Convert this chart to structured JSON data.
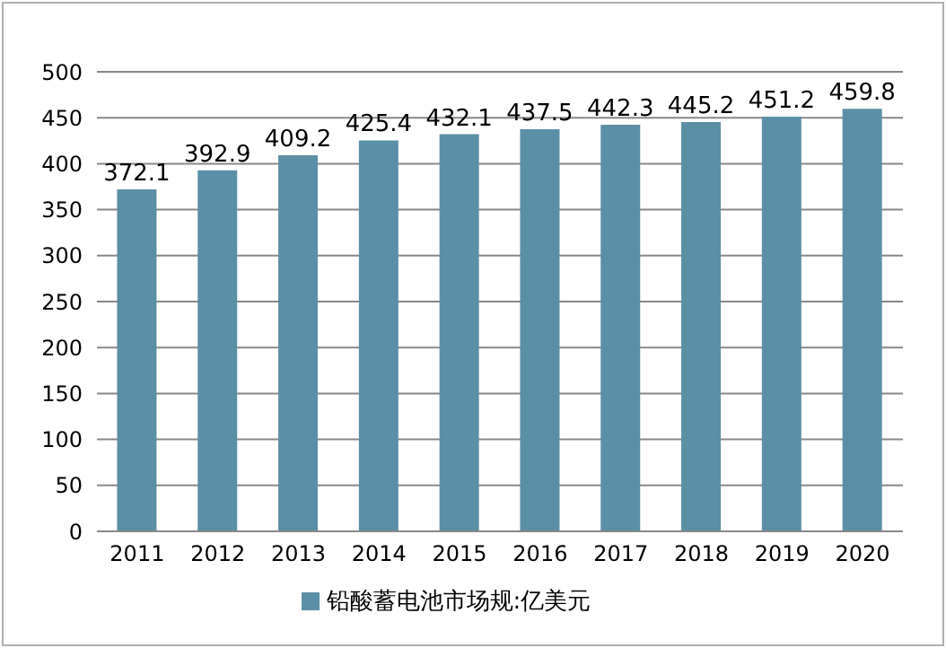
{
  "chart_data": {
    "type": "bar",
    "categories": [
      "2011",
      "2012",
      "2013",
      "2014",
      "2015",
      "2016",
      "2017",
      "2018",
      "2019",
      "2020"
    ],
    "series": [
      {
        "name": "铅酸蓄电池市场规:亿美元",
        "color": "#5b8fa6",
        "values": [
          372.1,
          392.9,
          409.2,
          425.4,
          432.1,
          437.5,
          442.3,
          445.2,
          451.2,
          459.8
        ]
      }
    ],
    "ylim": [
      0,
      500
    ],
    "yticks": [
      0,
      50,
      100,
      150,
      200,
      250,
      300,
      350,
      400,
      450,
      500
    ],
    "grid": "y",
    "legend": "bottom",
    "data_labels": true
  }
}
